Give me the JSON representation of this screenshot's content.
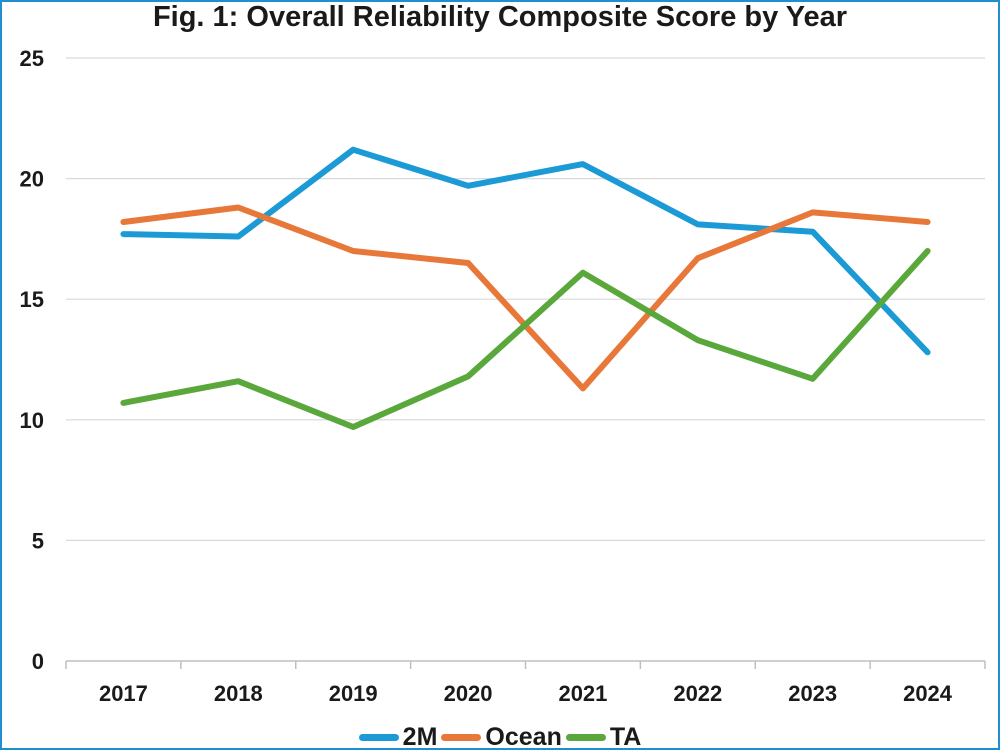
{
  "chart_data": {
    "type": "line",
    "title": "Fig. 1: Overall Reliability Composite Score by Year",
    "xlabel": "",
    "ylabel": "",
    "x": [
      "2017",
      "2018",
      "2019",
      "2020",
      "2021",
      "2022",
      "2023",
      "2024"
    ],
    "ylim": [
      0,
      25
    ],
    "yticks": [
      "0",
      "5",
      "10",
      "15",
      "20",
      "25"
    ],
    "grid": true,
    "legend_position": "bottom",
    "series": [
      {
        "name": "2M",
        "color": "#1c9ad6",
        "values": [
          17.7,
          17.6,
          21.2,
          19.7,
          20.6,
          18.1,
          17.8,
          12.8
        ]
      },
      {
        "name": "Ocean",
        "color": "#e8773a",
        "values": [
          18.2,
          18.8,
          17.0,
          16.5,
          11.3,
          16.7,
          18.6,
          18.2
        ]
      },
      {
        "name": "TA",
        "color": "#5aa83c",
        "values": [
          10.7,
          11.6,
          9.7,
          11.8,
          16.1,
          13.3,
          11.7,
          17.0
        ]
      }
    ]
  }
}
